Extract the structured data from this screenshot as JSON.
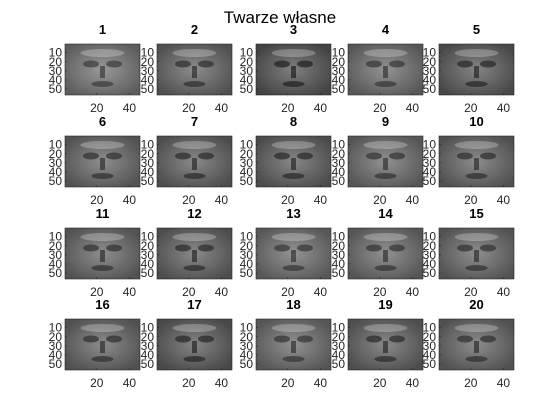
{
  "figure": {
    "title": "Twarze własne",
    "panels": [
      {
        "title": "1",
        "tone": 0.5
      },
      {
        "title": "2",
        "tone": 0.45
      },
      {
        "title": "3",
        "tone": 0.4
      },
      {
        "title": "4",
        "tone": 0.48
      },
      {
        "title": "5",
        "tone": 0.42
      },
      {
        "title": "6",
        "tone": 0.46
      },
      {
        "title": "7",
        "tone": 0.44
      },
      {
        "title": "8",
        "tone": 0.43
      },
      {
        "title": "9",
        "tone": 0.47
      },
      {
        "title": "10",
        "tone": 0.45
      },
      {
        "title": "11",
        "tone": 0.46
      },
      {
        "title": "12",
        "tone": 0.44
      },
      {
        "title": "13",
        "tone": 0.48
      },
      {
        "title": "14",
        "tone": 0.47
      },
      {
        "title": "15",
        "tone": 0.46
      },
      {
        "title": "16",
        "tone": 0.45
      },
      {
        "title": "17",
        "tone": 0.42
      },
      {
        "title": "18",
        "tone": 0.47
      },
      {
        "title": "19",
        "tone": 0.44
      },
      {
        "title": "20",
        "tone": 0.45
      }
    ],
    "yticks": [
      "10",
      "20",
      "30",
      "40",
      "50"
    ],
    "xticks": [
      "20",
      "40"
    ],
    "colors": {
      "axis": "#262626",
      "title": "#000000"
    }
  }
}
